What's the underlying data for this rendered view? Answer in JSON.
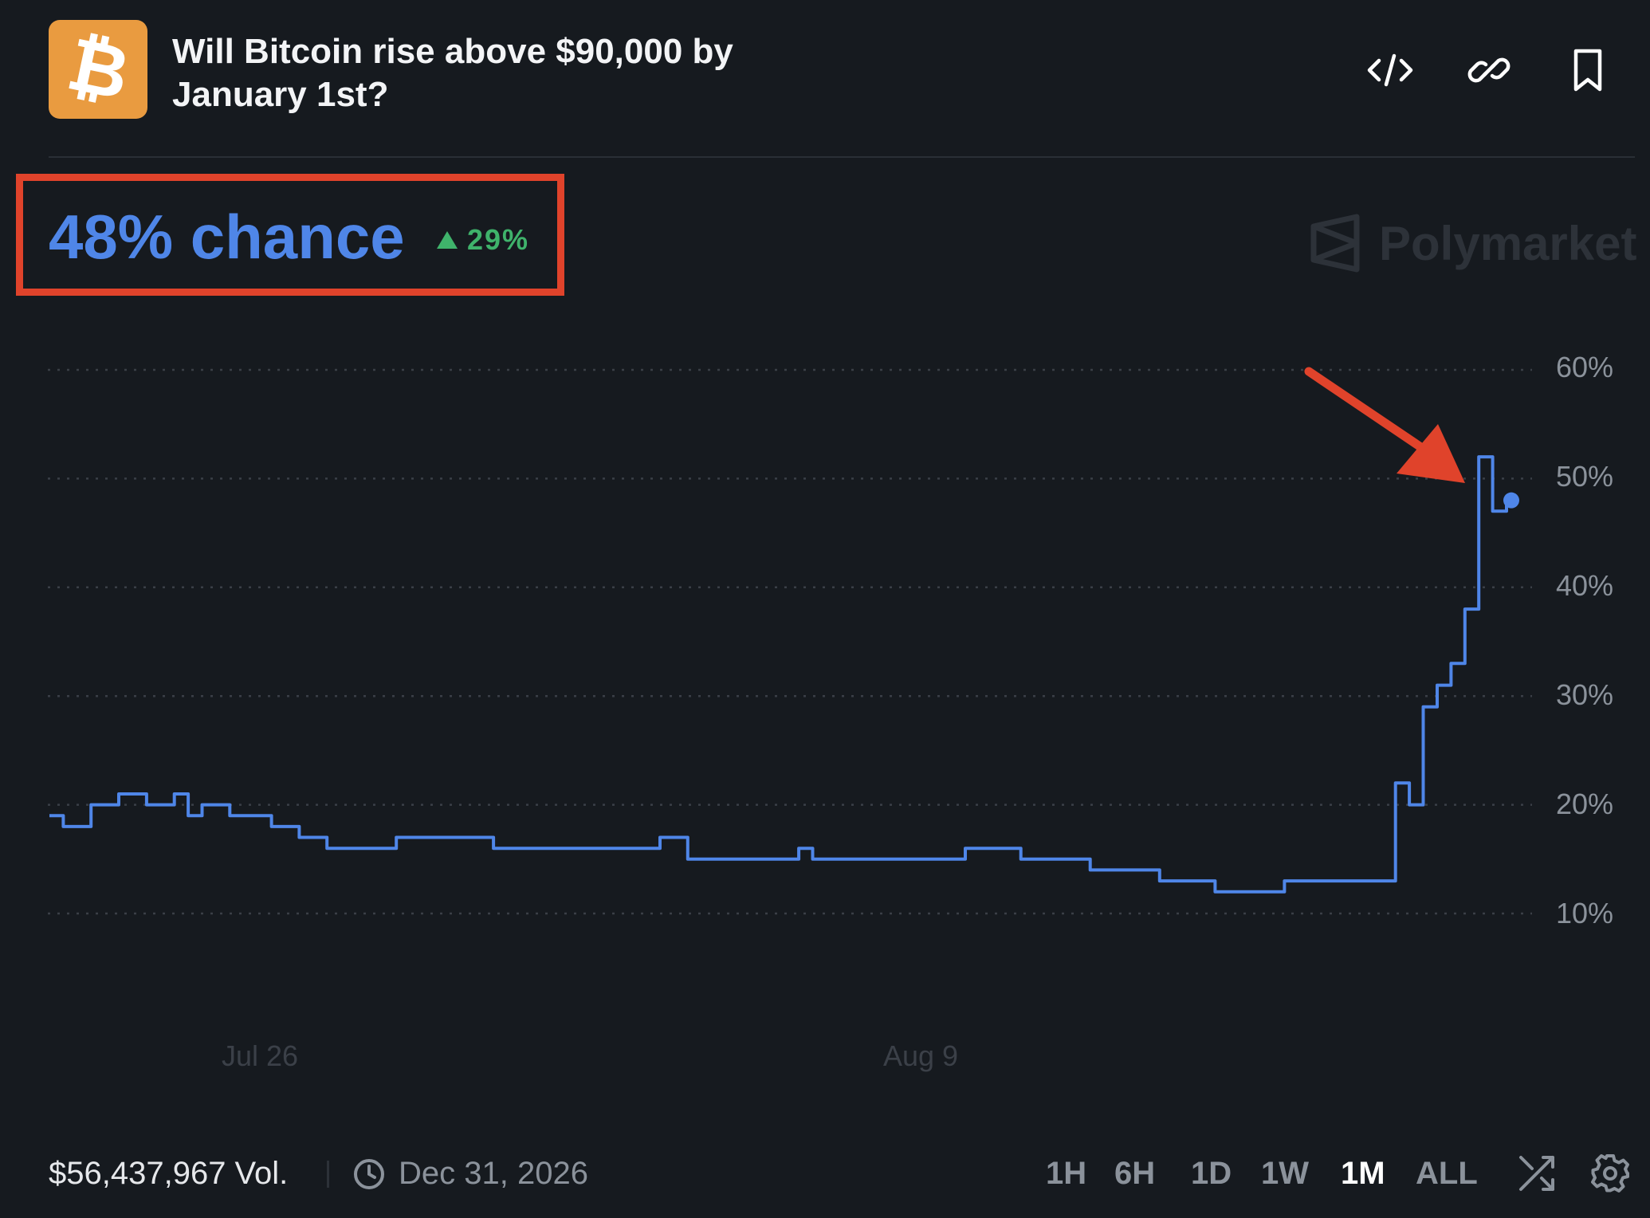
{
  "header": {
    "logo_symbol": "₿",
    "title": "Will Bitcoin rise above $90,000 by January 1st?",
    "icons": [
      "embed-code-icon",
      "link-icon",
      "bookmark-icon"
    ]
  },
  "summary": {
    "chance": "48% chance",
    "delta": "29%",
    "delta_direction": "up",
    "brand": "Polymarket"
  },
  "colors": {
    "background": "#161a1f",
    "accent": "#4f86e8",
    "positive": "#3fb36b",
    "logo": "#e99b40",
    "annotation": "#e0432b"
  },
  "chart_data": {
    "type": "line",
    "x_tick_labels": [
      "Jul 26",
      "Aug 9"
    ],
    "y_tick_labels": [
      "60%",
      "50%",
      "40%",
      "30%",
      "20%",
      "10%"
    ],
    "ylim": [
      10,
      60
    ],
    "grid": true,
    "series": [
      {
        "values": [
          19,
          18,
          18,
          20,
          20,
          21,
          21,
          20,
          20,
          21,
          19,
          20,
          20,
          19,
          19,
          19,
          18,
          18,
          17,
          17,
          16,
          16,
          16,
          16,
          16,
          17,
          17,
          17,
          17,
          17,
          17,
          17,
          16,
          16,
          16,
          16,
          16,
          16,
          16,
          16,
          16,
          16,
          16,
          16,
          17,
          17,
          15,
          15,
          15,
          15,
          15,
          15,
          15,
          15,
          16,
          15,
          15,
          15,
          15,
          15,
          15,
          15,
          15,
          15,
          15,
          15,
          16,
          16,
          16,
          16,
          15,
          15,
          15,
          15,
          15,
          14,
          14,
          14,
          14,
          14,
          13,
          13,
          13,
          13,
          12,
          12,
          12,
          12,
          12,
          13,
          13,
          13,
          13,
          13,
          13,
          13,
          13,
          22,
          20,
          29,
          31,
          33,
          38,
          52,
          47,
          48
        ]
      }
    ],
    "current_value": 48
  },
  "footer": {
    "volume": "$56,437,967 Vol.",
    "end_date": "Dec 31, 2026",
    "ranges": [
      "1H",
      "6H",
      "1D",
      "1W",
      "1M",
      "ALL"
    ],
    "active_range": "1M"
  }
}
